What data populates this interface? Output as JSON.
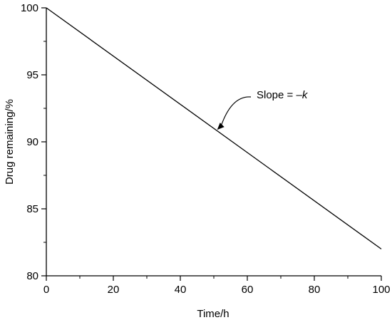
{
  "chart_data": {
    "type": "line",
    "title": "",
    "xlabel": "Time/h",
    "ylabel": "Drug remaining/%",
    "xlim": [
      0,
      100
    ],
    "ylim": [
      80,
      100
    ],
    "x_ticks": [
      0,
      20,
      40,
      60,
      80,
      100
    ],
    "y_ticks": [
      80,
      85,
      90,
      95,
      100
    ],
    "x_tick_labels": [
      "0",
      "20",
      "40",
      "60",
      "80",
      "100"
    ],
    "y_tick_labels": [
      "80",
      "85",
      "90",
      "95",
      "100"
    ],
    "grid": false,
    "series": [
      {
        "x": [
          0,
          100
        ],
        "y": [
          100,
          82
        ]
      }
    ],
    "annotation": {
      "text_prefix": "Slope = –",
      "text_var": "k",
      "points_to": {
        "x": 51,
        "y": 90.9
      }
    }
  }
}
